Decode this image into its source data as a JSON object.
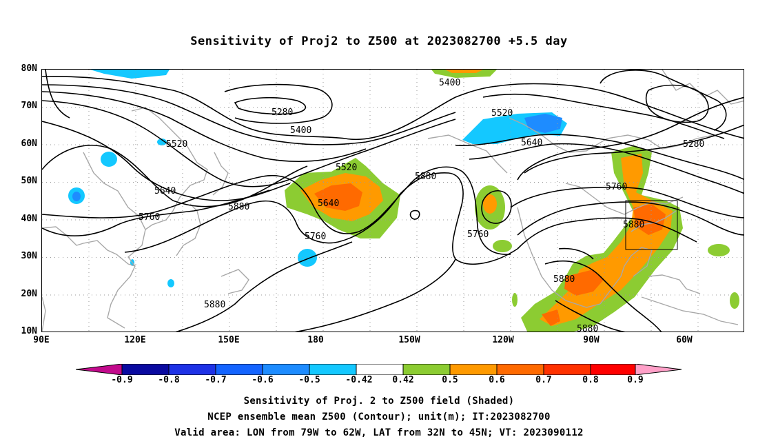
{
  "title": "Sensitivity of Proj2 to Z500 at 2023082700 +5.5 day",
  "lat_labels": [
    "80N",
    "70N",
    "60N",
    "50N",
    "40N",
    "30N",
    "20N",
    "10N"
  ],
  "lon_labels": [
    "90E",
    "120E",
    "150E",
    "180",
    "150W",
    "120W",
    "90W",
    "60W"
  ],
  "contour_labels": {
    "c5280a": "5280",
    "c5400a": "5400",
    "c5520a": "5520",
    "c5640a": "5640",
    "c5760a": "5760",
    "c5880a": "5880",
    "c5880b": "5880",
    "c5520b": "5520",
    "c5880c": "5880",
    "c5640b": "5640",
    "c5760b": "5760",
    "c5400b": "5400",
    "c5520c": "5520",
    "c5640c": "5640",
    "c5760c": "5760",
    "c5280b": "5280",
    "c5880d": "5880",
    "c5880e": "5880",
    "c5880f": "5880"
  },
  "colorbar": {
    "labels": [
      "-0.9",
      "-0.8",
      "-0.7",
      "-0.6",
      "-0.5",
      "-0.42",
      "0.42",
      "0.5",
      "0.6",
      "0.7",
      "0.8",
      "0.9"
    ],
    "colors": [
      "#c20a8c",
      "#0a0aa0",
      "#1e32e6",
      "#1464ff",
      "#1e8cff",
      "#14c8ff",
      "#ffffff",
      "#8ccc32",
      "#ff9a00",
      "#ff6a00",
      "#ff3200",
      "#ff0000",
      "#ffa0c8"
    ]
  },
  "footer": [
    "Sensitivity of Proj. 2 to Z500 field (Shaded)",
    "NCEP ensemble mean Z500 (Contour); unit(m); IT:2023082700",
    "Valid area: LON from 79W to 62W, LAT from 32N to 45N; VT: 2023090112"
  ]
}
